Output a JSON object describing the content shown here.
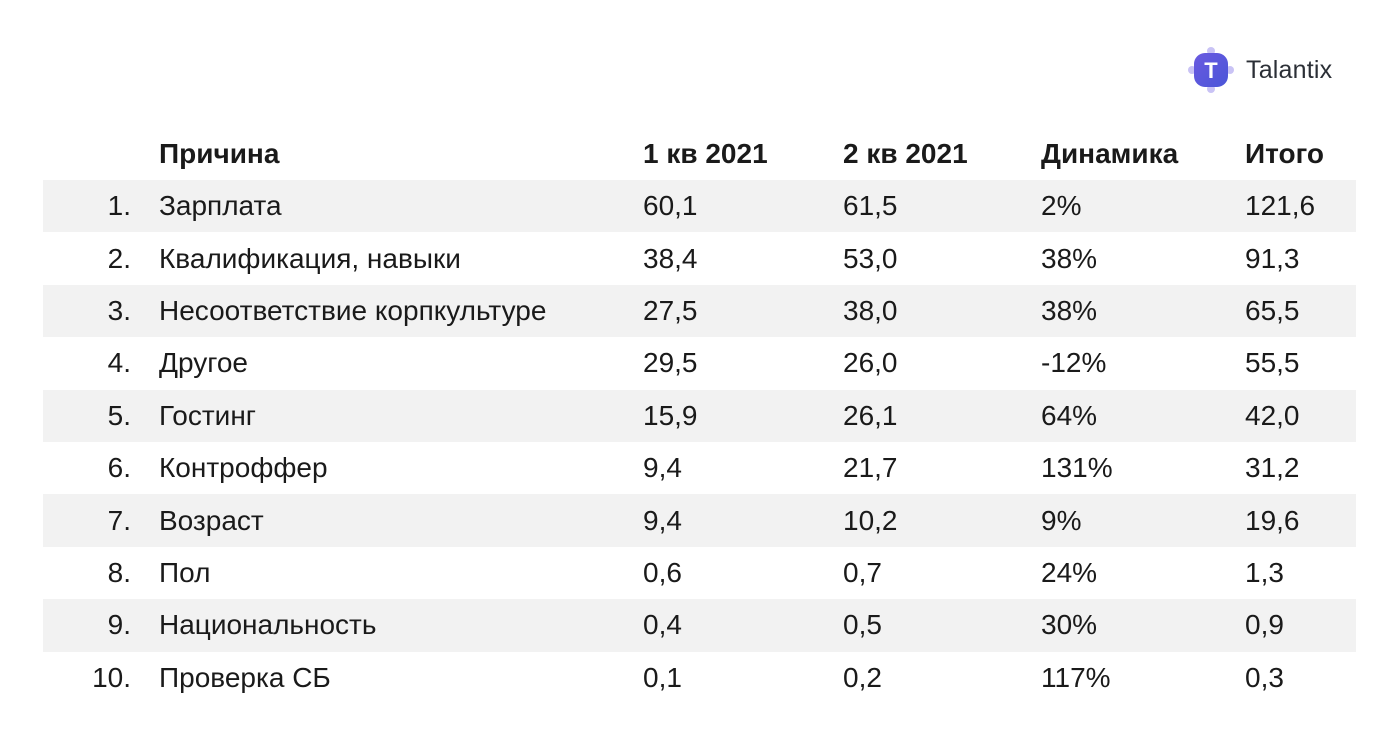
{
  "logo": {
    "letter": "T",
    "name": "Talantix",
    "brand_color": "#5b4fd6"
  },
  "table": {
    "headers": {
      "reason": "Причина",
      "q1": "1 кв 2021",
      "q2": "2 кв 2021",
      "dynamics": "Динамика",
      "total": "Итого"
    },
    "rows": [
      {
        "num": "1.",
        "reason": "Зарплата",
        "q1": "60,1",
        "q2": "61,5",
        "dynamics": "2%",
        "total": "121,6"
      },
      {
        "num": "2.",
        "reason": "Квалификация, навыки",
        "q1": "38,4",
        "q2": "53,0",
        "dynamics": "38%",
        "total": "91,3"
      },
      {
        "num": "3.",
        "reason": "Несоответствие корпкультуре",
        "q1": "27,5",
        "q2": "38,0",
        "dynamics": "38%",
        "total": "65,5"
      },
      {
        "num": "4.",
        "reason": "Другое",
        "q1": "29,5",
        "q2": "26,0",
        "dynamics": "-12%",
        "total": "55,5"
      },
      {
        "num": "5.",
        "reason": "Гостинг",
        "q1": "15,9",
        "q2": "26,1",
        "dynamics": "64%",
        "total": "42,0"
      },
      {
        "num": "6.",
        "reason": "Контроффер",
        "q1": "9,4",
        "q2": "21,7",
        "dynamics": "131%",
        "total": "31,2"
      },
      {
        "num": "7.",
        "reason": "Возраст",
        "q1": "9,4",
        "q2": "10,2",
        "dynamics": "9%",
        "total": "19,6"
      },
      {
        "num": "8.",
        "reason": "Пол",
        "q1": "0,6",
        "q2": "0,7",
        "dynamics": "24%",
        "total": "1,3"
      },
      {
        "num": "9.",
        "reason": "Национальность",
        "q1": "0,4",
        "q2": "0,5",
        "dynamics": "30%",
        "total": "0,9"
      },
      {
        "num": "10.",
        "reason": "Проверка СБ",
        "q1": "0,1",
        "q2": "0,2",
        "dynamics": "117%",
        "total": "0,3"
      }
    ],
    "shaded_color": "#f2f2f2"
  }
}
